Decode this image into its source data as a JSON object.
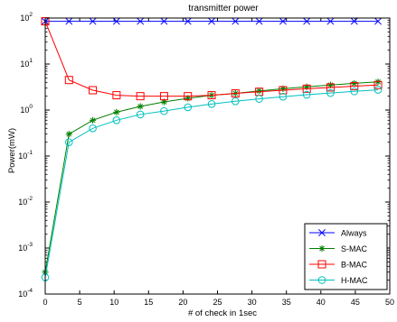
{
  "chart_data": {
    "type": "line",
    "title": "transmitter power",
    "xlabel": "# of check in 1sec",
    "ylabel": "Power(mW)",
    "xlim": [
      0,
      50
    ],
    "ylim_exponents": [
      -4,
      2
    ],
    "y_scale": "log",
    "grid": false,
    "legend_position": "bottom-right",
    "x_ticks": [
      0,
      5,
      10,
      15,
      20,
      25,
      30,
      35,
      40,
      45,
      50
    ],
    "y_ticks": [
      {
        "base": "10",
        "exp": "-4",
        "value": 0.0001
      },
      {
        "base": "10",
        "exp": "-3",
        "value": 0.001
      },
      {
        "base": "10",
        "exp": "-2",
        "value": 0.01
      },
      {
        "base": "10",
        "exp": "-1",
        "value": 0.1
      },
      {
        "base": "10",
        "exp": "0",
        "value": 1
      },
      {
        "base": "10",
        "exp": "1",
        "value": 10
      },
      {
        "base": "10",
        "exp": "2",
        "value": 100
      }
    ],
    "series": [
      {
        "name": "Always",
        "color": "#0000ff",
        "marker": "x",
        "x": [
          0,
          3.45,
          6.9,
          10.35,
          13.8,
          17.25,
          20.7,
          24.15,
          27.6,
          31.05,
          34.5,
          37.95,
          41.4,
          44.85,
          48.3
        ],
        "y": [
          85,
          85,
          85,
          85,
          85,
          85,
          85,
          85,
          85,
          85,
          85,
          85,
          85,
          85,
          85
        ]
      },
      {
        "name": "S-MAC",
        "color": "#007f00",
        "marker": "star",
        "x": [
          0,
          3.45,
          6.9,
          10.35,
          13.8,
          17.25,
          20.7,
          24.15,
          27.6,
          31.05,
          34.5,
          37.95,
          41.4,
          44.85,
          48.3
        ],
        "y": [
          0.0003,
          0.3,
          0.6,
          0.9,
          1.2,
          1.5,
          1.8,
          2.1,
          2.3,
          2.6,
          2.9,
          3.2,
          3.5,
          3.8,
          4.1
        ]
      },
      {
        "name": "B-MAC",
        "color": "#ff0000",
        "marker": "square",
        "x": [
          0,
          3.45,
          6.9,
          10.35,
          13.8,
          17.25,
          20.7,
          24.15,
          27.6,
          31.05,
          34.5,
          37.95,
          41.4,
          44.85,
          48.3
        ],
        "y": [
          85,
          4.5,
          2.7,
          2.1,
          2.0,
          2.0,
          2.0,
          2.1,
          2.3,
          2.5,
          2.7,
          2.9,
          3.1,
          3.3,
          3.5
        ]
      },
      {
        "name": "H-MAC",
        "color": "#00bfbf",
        "marker": "circle",
        "x": [
          0,
          3.45,
          6.9,
          10.35,
          13.8,
          17.25,
          20.7,
          24.15,
          27.6,
          31.05,
          34.5,
          37.95,
          41.4,
          44.85,
          48.3
        ],
        "y": [
          0.00023,
          0.2,
          0.4,
          0.6,
          0.8,
          0.95,
          1.15,
          1.35,
          1.55,
          1.75,
          1.95,
          2.15,
          2.35,
          2.55,
          2.75
        ]
      }
    ]
  }
}
